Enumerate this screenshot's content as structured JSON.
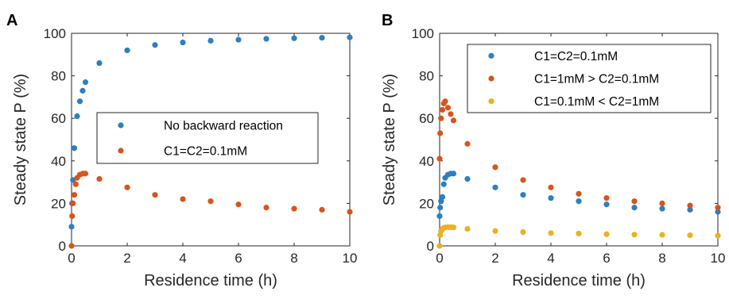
{
  "panels": [
    {
      "letter": "A"
    },
    {
      "letter": "B"
    }
  ],
  "colors": {
    "blue": "#2e7ec1",
    "orange": "#d9541b",
    "yellow": "#ecb120"
  },
  "chart_data": [
    {
      "type": "scatter",
      "panel": "A",
      "xlabel": "Residence time (h)",
      "ylabel": "Steady state P (%)",
      "xlim": [
        0,
        10
      ],
      "ylim": [
        0,
        100
      ],
      "xticks": [
        0,
        2,
        4,
        6,
        8,
        10
      ],
      "yticks": [
        0,
        20,
        40,
        60,
        80,
        100
      ],
      "grid": false,
      "legend_position": "center-right",
      "series": [
        {
          "name": "No backward reaction",
          "color": "#2e7ec1",
          "x": [
            0,
            0.02,
            0.05,
            0.1,
            0.2,
            0.3,
            0.4,
            0.5,
            1,
            2,
            3,
            4,
            5,
            6,
            7,
            8,
            9,
            10
          ],
          "y": [
            9,
            20,
            31,
            46,
            61,
            68,
            73,
            77,
            86,
            92,
            94.5,
            95.7,
            96.5,
            97,
            97.4,
            97.7,
            97.9,
            98.1
          ]
        },
        {
          "name": "C1=C2=0.1mM",
          "color": "#d9541b",
          "x": [
            0,
            0.02,
            0.05,
            0.1,
            0.15,
            0.2,
            0.3,
            0.4,
            0.5,
            1,
            2,
            3,
            4,
            5,
            6,
            7,
            8,
            9,
            10
          ],
          "y": [
            0,
            14,
            20,
            24,
            29,
            32,
            33.5,
            34,
            34,
            31.5,
            27.5,
            24,
            22,
            21,
            19.5,
            18,
            17.5,
            17,
            16
          ]
        }
      ]
    },
    {
      "type": "scatter",
      "panel": "B",
      "xlabel": "Residence time (h)",
      "ylabel": "Steady state P (%)",
      "xlim": [
        0,
        10
      ],
      "ylim": [
        0,
        100
      ],
      "xticks": [
        0,
        2,
        4,
        6,
        8,
        10
      ],
      "yticks": [
        0,
        20,
        40,
        60,
        80,
        100
      ],
      "grid": false,
      "legend_position": "top-right",
      "series": [
        {
          "name": "C1=C2=0.1mM",
          "color": "#2e7ec1",
          "x": [
            0,
            0.02,
            0.05,
            0.1,
            0.15,
            0.2,
            0.3,
            0.4,
            0.5,
            1,
            2,
            3,
            4,
            5,
            6,
            7,
            8,
            9,
            10
          ],
          "y": [
            14,
            18,
            21,
            23,
            29,
            32,
            33.5,
            34,
            34,
            31.5,
            27.5,
            24,
            22.5,
            21,
            19.5,
            18,
            17.5,
            17,
            16
          ]
        },
        {
          "name": "C1=1mM > C2=0.1mM",
          "color": "#d9541b",
          "x": [
            0,
            0.02,
            0.05,
            0.1,
            0.15,
            0.2,
            0.3,
            0.4,
            0.5,
            1,
            2,
            3,
            4,
            5,
            6,
            7,
            8,
            9,
            10
          ],
          "y": [
            41,
            53,
            60,
            64,
            67,
            68,
            65,
            62,
            59,
            48,
            37,
            31,
            27.5,
            24.5,
            22.5,
            21,
            20,
            19,
            18
          ]
        },
        {
          "name": "C1=0.1mM < C2=1mM",
          "color": "#ecb120",
          "x": [
            0,
            0.02,
            0.05,
            0.1,
            0.15,
            0.2,
            0.3,
            0.4,
            0.5,
            1,
            2,
            3,
            4,
            5,
            6,
            7,
            8,
            9,
            10
          ],
          "y": [
            0,
            5,
            7,
            8,
            8.5,
            8.7,
            8.8,
            8.8,
            8.7,
            8,
            7,
            6.5,
            6,
            5.8,
            5.5,
            5.3,
            5.2,
            5,
            4.8
          ]
        }
      ]
    }
  ]
}
